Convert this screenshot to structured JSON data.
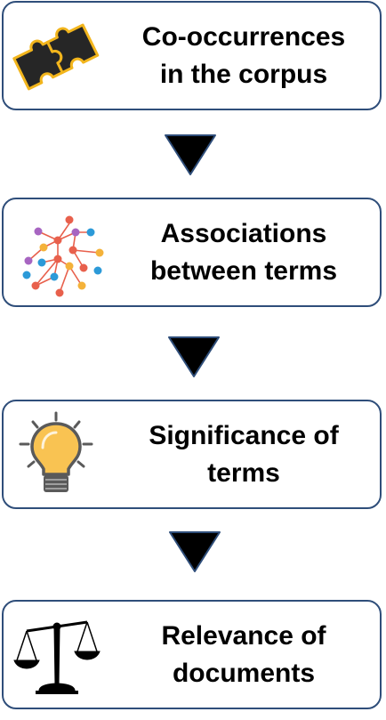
{
  "steps": [
    {
      "line1": "Co-occurrences",
      "line2": "in the corpus",
      "icon": "puzzle-icon"
    },
    {
      "line1": "Associations",
      "line2": "between terms",
      "icon": "network-graph-icon"
    },
    {
      "line1": "Significance of",
      "line2": "terms",
      "icon": "lightbulb-icon"
    },
    {
      "line1": "Relevance of",
      "line2": "documents",
      "icon": "scales-icon"
    }
  ],
  "colors": {
    "box_border": "#2f4e7a",
    "arrow_fill": "#000000",
    "arrow_stroke": "#2f4e7a",
    "puzzle_piece": "#262626",
    "puzzle_outline": "#f2b51c",
    "bulb_glass": "#f9c352",
    "bulb_base": "#5a5a5a",
    "node_red": "#e8604c",
    "node_orange": "#f4b23a",
    "node_blue": "#2c9ad8",
    "node_purple": "#a765c1"
  }
}
